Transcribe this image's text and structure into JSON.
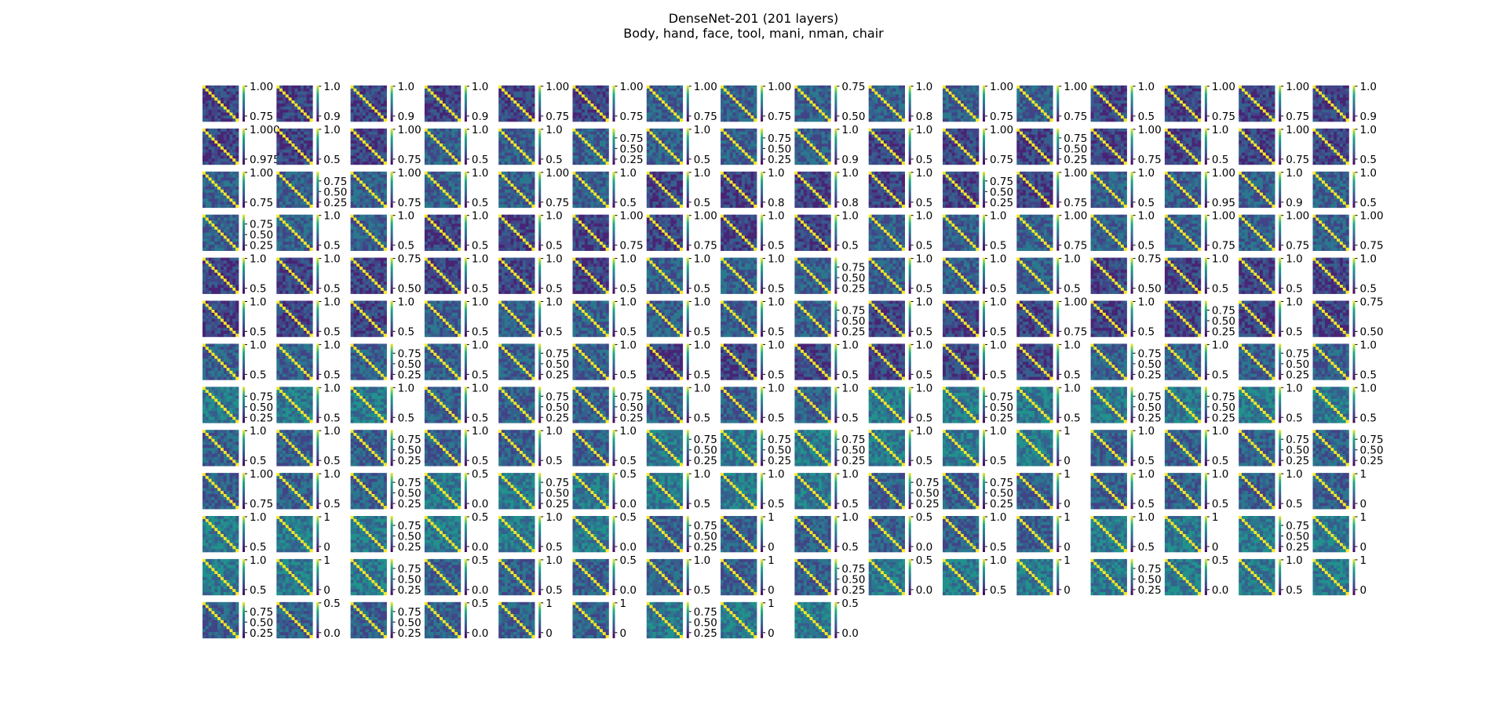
{
  "title": "DenseNet-201 (201 layers)",
  "subtitle": "Body, hand, face, tool, mani, nman, chair",
  "chart_data": {
    "type": "heatmap",
    "title": "DenseNet-201 (201 layers)",
    "subtitle": "Body, hand, face, tool, mani, nman, chair",
    "colormap": "viridis",
    "grid": false,
    "rows": 13,
    "cols": 16,
    "panel_count": 201,
    "colorbar_ticks": [
      [
        [
          "0.75",
          "1.00"
        ],
        [
          "0.9",
          "1.0"
        ],
        [
          "0.9",
          "1.0"
        ],
        [
          "0.9",
          "1.0"
        ],
        [
          "0.75",
          "1.00"
        ],
        [
          "0.75",
          "1.00"
        ],
        [
          "0.75",
          "1.00"
        ],
        [
          "0.75",
          "1.00"
        ],
        [
          "0.50",
          "0.75"
        ],
        [
          "0.8",
          "1.0"
        ],
        [
          "0.75",
          "1.00"
        ],
        [
          "0.75",
          "1.00"
        ],
        [
          "0.5",
          "1.0"
        ],
        [
          "0.75",
          "1.00"
        ],
        [
          "0.75",
          "1.00"
        ],
        [
          "0.9",
          "1.0"
        ]
      ],
      [
        [
          "0.975",
          "1.000"
        ],
        [
          "0.5",
          "1.0"
        ],
        [
          "0.75",
          "1.00"
        ],
        [
          "0.5",
          "1.0"
        ],
        [
          "0.5",
          "1.0"
        ],
        [
          "0.25",
          "0.50",
          "0.75"
        ],
        [
          "0.5",
          "1.0"
        ],
        [
          "0.25",
          "0.50",
          "0.75"
        ],
        [
          "0.9",
          "1.0"
        ],
        [
          "0.5",
          "1.0"
        ],
        [
          "0.75",
          "1.00"
        ],
        [
          "0.25",
          "0.50",
          "0.75"
        ],
        [
          "0.75",
          "1.00"
        ],
        [
          "0.5",
          "1.0"
        ],
        [
          "0.75",
          "1.00"
        ],
        [
          "0.5",
          "1.0"
        ]
      ],
      [
        [
          "0.75",
          "1.00"
        ],
        [
          "0.25",
          "0.50",
          "0.75"
        ],
        [
          "0.75",
          "1.00"
        ],
        [
          "0.5",
          "1.0"
        ],
        [
          "0.75",
          "1.00"
        ],
        [
          "0.5",
          "1.0"
        ],
        [
          "0.5",
          "1.0"
        ],
        [
          "0.8",
          "1.0"
        ],
        [
          "0.8",
          "1.0"
        ],
        [
          "0.5",
          "1.0"
        ],
        [
          "0.25",
          "0.50",
          "0.75"
        ],
        [
          "0.75",
          "1.00"
        ],
        [
          "0.5",
          "1.0"
        ],
        [
          "0.95",
          "1.00"
        ],
        [
          "0.9",
          "1.0"
        ],
        [
          "0.5",
          "1.0"
        ]
      ],
      [
        [
          "0.25",
          "0.50",
          "0.75"
        ],
        [
          "0.5",
          "1.0"
        ],
        [
          "0.5",
          "1.0"
        ],
        [
          "0.5",
          "1.0"
        ],
        [
          "0.5",
          "1.0"
        ],
        [
          "0.75",
          "1.00"
        ],
        [
          "0.75",
          "1.00"
        ],
        [
          "0.5",
          "1.0"
        ],
        [
          "0.5",
          "1.0"
        ],
        [
          "0.5",
          "1.0"
        ],
        [
          "0.5",
          "1.0"
        ],
        [
          "0.75",
          "1.00"
        ],
        [
          "0.5",
          "1.0"
        ],
        [
          "0.75",
          "1.00"
        ],
        [
          "0.75",
          "1.00"
        ],
        [
          "0.75",
          "1.00"
        ]
      ],
      [
        [
          "0.5",
          "1.0"
        ],
        [
          "0.5",
          "1.0"
        ],
        [
          "0.50",
          "0.75"
        ],
        [
          "0.5",
          "1.0"
        ],
        [
          "0.5",
          "1.0"
        ],
        [
          "0.5",
          "1.0"
        ],
        [
          "0.5",
          "1.0"
        ],
        [
          "0.5",
          "1.0"
        ],
        [
          "0.25",
          "0.50",
          "0.75"
        ],
        [
          "0.5",
          "1.0"
        ],
        [
          "0.5",
          "1.0"
        ],
        [
          "0.5",
          "1.0"
        ],
        [
          "0.50",
          "0.75"
        ],
        [
          "0.5",
          "1.0"
        ],
        [
          "0.5",
          "1.0"
        ],
        [
          "0.5",
          "1.0"
        ]
      ],
      [
        [
          "0.5",
          "1.0"
        ],
        [
          "0.5",
          "1.0"
        ],
        [
          "0.5",
          "1.0"
        ],
        [
          "0.5",
          "1.0"
        ],
        [
          "0.5",
          "1.0"
        ],
        [
          "0.5",
          "1.0"
        ],
        [
          "0.5",
          "1.0"
        ],
        [
          "0.5",
          "1.0"
        ],
        [
          "0.25",
          "0.50",
          "0.75"
        ],
        [
          "0.5",
          "1.0"
        ],
        [
          "0.5",
          "1.0"
        ],
        [
          "0.75",
          "1.00"
        ],
        [
          "0.5",
          "1.0"
        ],
        [
          "0.25",
          "0.50",
          "0.75"
        ],
        [
          "0.5",
          "1.0"
        ],
        [
          "0.50",
          "0.75"
        ]
      ],
      [
        [
          "0.5",
          "1.0"
        ],
        [
          "0.5",
          "1.0"
        ],
        [
          "0.25",
          "0.50",
          "0.75"
        ],
        [
          "0.5",
          "1.0"
        ],
        [
          "0.25",
          "0.50",
          "0.75"
        ],
        [
          "0.5",
          "1.0"
        ],
        [
          "0.5",
          "1.0"
        ],
        [
          "0.5",
          "1.0"
        ],
        [
          "0.5",
          "1.0"
        ],
        [
          "0.5",
          "1.0"
        ],
        [
          "0.5",
          "1.0"
        ],
        [
          "0.5",
          "1.0"
        ],
        [
          "0.25",
          "0.50",
          "0.75"
        ],
        [
          "0.5",
          "1.0"
        ],
        [
          "0.25",
          "0.50",
          "0.75"
        ],
        [
          "0.5",
          "1.0"
        ]
      ],
      [
        [
          "0.25",
          "0.50",
          "0.75"
        ],
        [
          "0.5",
          "1.0"
        ],
        [
          "0.5",
          "1.0"
        ],
        [
          "0.5",
          "1.0"
        ],
        [
          "0.25",
          "0.50",
          "0.75"
        ],
        [
          "0.25",
          "0.50",
          "0.75"
        ],
        [
          "0.5",
          "1.0"
        ],
        [
          "0.5",
          "1.0"
        ],
        [
          "0.5",
          "1.0"
        ],
        [
          "0.5",
          "1.0"
        ],
        [
          "0.25",
          "0.50",
          "0.75"
        ],
        [
          "0.5",
          "1.0"
        ],
        [
          "0.25",
          "0.50",
          "0.75"
        ],
        [
          "0.25",
          "0.50",
          "0.75"
        ],
        [
          "0.5",
          "1.0"
        ],
        [
          "0.5",
          "1.0"
        ]
      ],
      [
        [
          "0.5",
          "1.0"
        ],
        [
          "0.5",
          "1.0"
        ],
        [
          "0.25",
          "0.50",
          "0.75"
        ],
        [
          "0.5",
          "1.0"
        ],
        [
          "0.5",
          "1.0"
        ],
        [
          "0.5",
          "1.0"
        ],
        [
          "0.25",
          "0.50",
          "0.75"
        ],
        [
          "0.25",
          "0.50",
          "0.75"
        ],
        [
          "0.25",
          "0.50",
          "0.75"
        ],
        [
          "0.5",
          "1.0"
        ],
        [
          "0.5",
          "1.0"
        ],
        [
          "0",
          "1"
        ],
        [
          "0.5",
          "1.0"
        ],
        [
          "0.5",
          "1.0"
        ],
        [
          "0.25",
          "0.50",
          "0.75"
        ],
        [
          "0.25",
          "0.50",
          "0.75"
        ]
      ],
      [
        [
          "0.75",
          "1.00"
        ],
        [
          "0.5",
          "1.0"
        ],
        [
          "0.25",
          "0.50",
          "0.75"
        ],
        [
          "0.0",
          "0.5"
        ],
        [
          "0.25",
          "0.50",
          "0.75"
        ],
        [
          "0.0",
          "0.5"
        ],
        [
          "0.5",
          "1.0"
        ],
        [
          "0.5",
          "1.0"
        ],
        [
          "0.5",
          "1.0"
        ],
        [
          "0.25",
          "0.50",
          "0.75"
        ],
        [
          "0.25",
          "0.50",
          "0.75"
        ],
        [
          "0",
          "1"
        ],
        [
          "0.5",
          "1.0"
        ],
        [
          "0.5",
          "1.0"
        ],
        [
          "0.5",
          "1.0"
        ],
        [
          "0",
          "1"
        ]
      ],
      [
        [
          "0.5",
          "1.0"
        ],
        [
          "0",
          "1"
        ],
        [
          "0.25",
          "0.50",
          "0.75"
        ],
        [
          "0.0",
          "0.5"
        ],
        [
          "0.5",
          "1.0"
        ],
        [
          "0.0",
          "0.5"
        ],
        [
          "0.25",
          "0.50",
          "0.75"
        ],
        [
          "0",
          "1"
        ],
        [
          "0.5",
          "1.0"
        ],
        [
          "0.0",
          "0.5"
        ],
        [
          "0.5",
          "1.0"
        ],
        [
          "0",
          "1"
        ],
        [
          "0.5",
          "1.0"
        ],
        [
          "0",
          "1"
        ],
        [
          "0.25",
          "0.50",
          "0.75"
        ],
        [
          "0",
          "1"
        ]
      ],
      [
        [
          "0.5",
          "1.0"
        ],
        [
          "0",
          "1"
        ],
        [
          "0.25",
          "0.50",
          "0.75"
        ],
        [
          "0.0",
          "0.5"
        ],
        [
          "0.5",
          "1.0"
        ],
        [
          "0.0",
          "0.5"
        ],
        [
          "0.5",
          "1.0"
        ],
        [
          "0",
          "1"
        ],
        [
          "0.25",
          "0.50",
          "0.75"
        ],
        [
          "0.0",
          "0.5"
        ],
        [
          "0.5",
          "1.0"
        ],
        [
          "0",
          "1"
        ],
        [
          "0.25",
          "0.50",
          "0.75"
        ],
        [
          "0.0",
          "0.5"
        ],
        [
          "0.5",
          "1.0"
        ],
        [
          "0",
          "1"
        ]
      ],
      [
        [
          "0.25",
          "0.50",
          "0.75"
        ],
        [
          "0.0",
          "0.5"
        ],
        [
          "0.25",
          "0.50",
          "0.75"
        ],
        [
          "0.0",
          "0.5"
        ],
        [
          "0",
          "1"
        ],
        [
          "0",
          "1"
        ],
        [
          "0.25",
          "0.50",
          "0.75"
        ],
        [
          "0",
          "1"
        ],
        [
          "0.0",
          "0.5"
        ]
      ]
    ]
  }
}
